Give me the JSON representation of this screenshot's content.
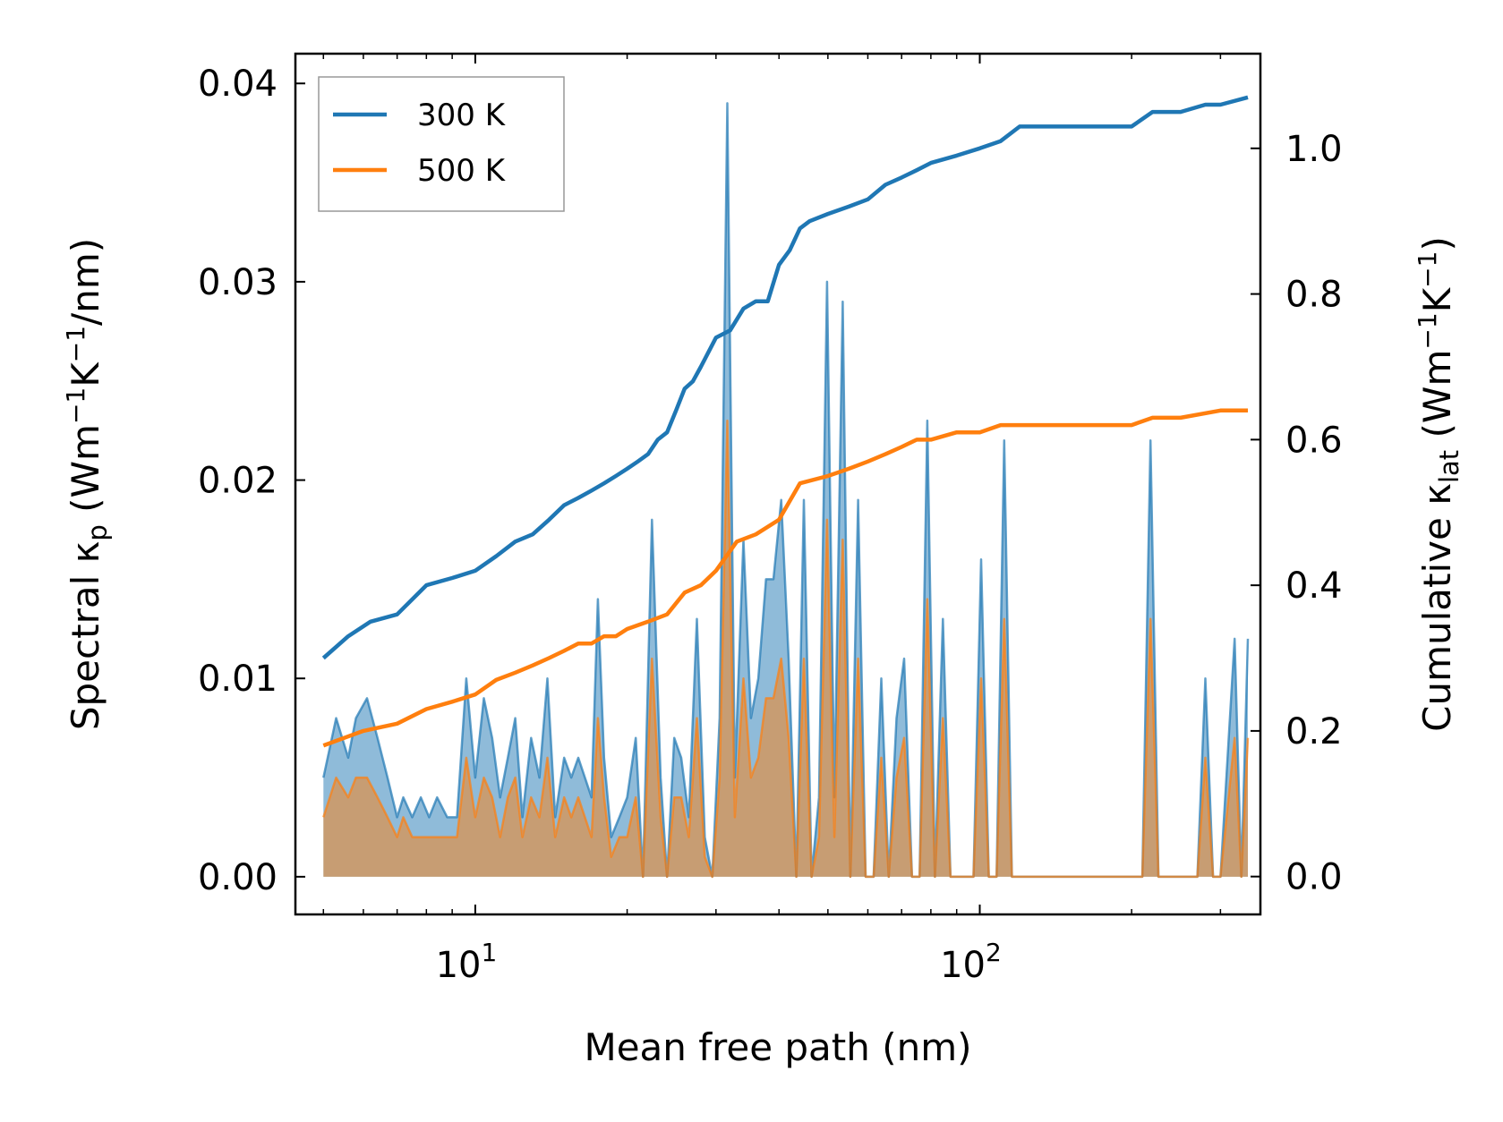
{
  "chart_data": {
    "type": "line",
    "xlabel": "Mean free path (nm)",
    "x_scale": "log",
    "xlim": [
      4.4,
      360
    ],
    "x_major_ticks": [
      {
        "value": 10,
        "base": "10",
        "exp": "1"
      },
      {
        "value": 100,
        "base": "10",
        "exp": "2"
      }
    ],
    "left_axis": {
      "label_main": "Spectral κ",
      "label_sub": "p",
      "label_unit_parts": [
        "(Wm",
        "−1",
        "K",
        "−1",
        "/nm)"
      ],
      "ylim": [
        -0.0019,
        0.0415
      ],
      "ticks": [
        0.0,
        0.01,
        0.02,
        0.03,
        0.04
      ],
      "tick_labels": [
        "0.00",
        "0.01",
        "0.02",
        "0.03",
        "0.04"
      ]
    },
    "right_axis": {
      "label_main": "Cumulative κ",
      "label_sub": "lat",
      "label_unit_parts": [
        "(Wm",
        "−1",
        "K",
        "−1",
        ")"
      ],
      "ylim": [
        -0.052,
        1.13
      ],
      "ticks": [
        0.0,
        0.2,
        0.4,
        0.6,
        0.8,
        1.0
      ],
      "tick_labels": [
        "0.0",
        "0.2",
        "0.4",
        "0.6",
        "0.8",
        "1.0"
      ]
    },
    "legend": {
      "position": "upper-left",
      "entries": [
        "300 K",
        "500 K"
      ]
    },
    "colors": {
      "300 K": "#1f77b4",
      "500 K": "#ff7f0e"
    },
    "series": [
      {
        "name": "300 K",
        "axis": "right",
        "kind": "cumulative",
        "x": [
          5.0,
          5.6,
          6.2,
          7.0,
          8.0,
          9.0,
          10.0,
          11.0,
          12.0,
          13.0,
          14.0,
          15.0,
          16.0,
          17.0,
          18.0,
          19.0,
          20.0,
          21.0,
          22.0,
          23.0,
          24.0,
          25.0,
          26.0,
          27.0,
          28.0,
          30.0,
          32.0,
          34.0,
          36.0,
          38.0,
          40.0,
          42.0,
          44.0,
          46.0,
          50.0,
          55.0,
          60.0,
          65.0,
          70.0,
          75.0,
          80.0,
          90.0,
          100.0,
          110.0,
          120.0,
          150.0,
          200.0,
          220.0,
          250.0,
          280.0,
          300.0,
          340.0
        ],
        "values": [
          0.3,
          0.33,
          0.35,
          0.36,
          0.4,
          0.41,
          0.42,
          0.44,
          0.46,
          0.47,
          0.49,
          0.51,
          0.52,
          0.53,
          0.54,
          0.55,
          0.56,
          0.57,
          0.58,
          0.6,
          0.61,
          0.64,
          0.67,
          0.68,
          0.7,
          0.74,
          0.75,
          0.78,
          0.79,
          0.79,
          0.84,
          0.86,
          0.89,
          0.9,
          0.91,
          0.92,
          0.93,
          0.95,
          0.96,
          0.97,
          0.98,
          0.99,
          1.0,
          1.01,
          1.03,
          1.03,
          1.03,
          1.05,
          1.05,
          1.06,
          1.06,
          1.07
        ]
      },
      {
        "name": "500 K",
        "axis": "right",
        "kind": "cumulative",
        "x": [
          5.0,
          6.0,
          7.0,
          8.0,
          9.0,
          10.0,
          11.0,
          12.0,
          13.0,
          14.0,
          15.0,
          16.0,
          17.0,
          18.0,
          19.0,
          20.0,
          22.0,
          24.0,
          26.0,
          28.0,
          30.0,
          33.0,
          36.0,
          40.0,
          44.0,
          50.0,
          55.0,
          60.0,
          65.0,
          70.0,
          75.0,
          80.0,
          90.0,
          100.0,
          110.0,
          120.0,
          150.0,
          200.0,
          220.0,
          250.0,
          300.0,
          340.0
        ],
        "values": [
          0.18,
          0.2,
          0.21,
          0.23,
          0.24,
          0.25,
          0.27,
          0.28,
          0.29,
          0.3,
          0.31,
          0.32,
          0.32,
          0.33,
          0.33,
          0.34,
          0.35,
          0.36,
          0.39,
          0.4,
          0.42,
          0.46,
          0.47,
          0.49,
          0.54,
          0.55,
          0.56,
          0.57,
          0.58,
          0.59,
          0.6,
          0.6,
          0.61,
          0.61,
          0.62,
          0.62,
          0.62,
          0.62,
          0.63,
          0.63,
          0.64,
          0.64
        ]
      },
      {
        "name": "300 K",
        "axis": "left",
        "kind": "spectral",
        "x": [
          5.0,
          5.3,
          5.6,
          5.8,
          6.1,
          6.4,
          6.7,
          7.0,
          7.2,
          7.5,
          7.8,
          8.1,
          8.4,
          8.8,
          9.2,
          9.6,
          10.0,
          10.4,
          10.8,
          11.2,
          11.6,
          12.0,
          12.4,
          12.9,
          13.4,
          13.9,
          14.4,
          15.0,
          15.5,
          16.0,
          17.0,
          17.5,
          18.0,
          18.6,
          19.3,
          20.0,
          20.8,
          21.5,
          22.4,
          23.3,
          24.0,
          24.8,
          25.6,
          26.5,
          27.5,
          28.5,
          29.5,
          30.5,
          31.6,
          32.7,
          34.0,
          35.2,
          36.4,
          37.7,
          39.0,
          40.4,
          41.8,
          43.3,
          44.8,
          46.4,
          48.0,
          49.8,
          51.5,
          53.5,
          55.4,
          57.4,
          59.4,
          61.6,
          63.8,
          66.0,
          68.4,
          70.8,
          73.4,
          76.0,
          78.7,
          81.5,
          84.5,
          87.5,
          90.6,
          93.8,
          97.2,
          100.6,
          104.2,
          108.0,
          111.8,
          115.8,
          119.9,
          124.2,
          128.6,
          133.2,
          200.0,
          210.0,
          218.0,
          226.0,
          234.0,
          270.0,
          280.0,
          290.0,
          300.0,
          320.0,
          330.0,
          340.0
        ],
        "values": [
          0.005,
          0.008,
          0.006,
          0.008,
          0.009,
          0.007,
          0.005,
          0.003,
          0.004,
          0.003,
          0.004,
          0.003,
          0.004,
          0.003,
          0.003,
          0.01,
          0.005,
          0.009,
          0.007,
          0.004,
          0.006,
          0.008,
          0.003,
          0.007,
          0.005,
          0.01,
          0.003,
          0.006,
          0.005,
          0.006,
          0.004,
          0.014,
          0.006,
          0.002,
          0.003,
          0.004,
          0.007,
          0.0,
          0.018,
          0.005,
          0.0,
          0.007,
          0.006,
          0.003,
          0.013,
          0.002,
          0.0,
          0.008,
          0.039,
          0.005,
          0.017,
          0.008,
          0.01,
          0.015,
          0.015,
          0.019,
          0.011,
          0.0,
          0.019,
          0.0,
          0.004,
          0.03,
          0.004,
          0.029,
          0.0,
          0.019,
          0.0,
          0.0,
          0.01,
          0.0,
          0.008,
          0.011,
          0.0,
          0.0,
          0.023,
          0.0,
          0.013,
          0.0,
          0.0,
          0.0,
          0.0,
          0.016,
          0.0,
          0.0,
          0.022,
          0.0,
          0.0,
          0.0,
          0.0,
          0.0,
          0.0,
          0.0,
          0.022,
          0.0,
          0.0,
          0.0,
          0.01,
          0.0,
          0.0,
          0.012,
          0.0,
          0.012
        ]
      },
      {
        "name": "500 K",
        "axis": "left",
        "kind": "spectral",
        "x": [
          5.0,
          5.3,
          5.6,
          5.8,
          6.1,
          6.4,
          6.7,
          7.0,
          7.2,
          7.5,
          7.8,
          8.1,
          8.4,
          8.8,
          9.2,
          9.6,
          10.0,
          10.4,
          10.8,
          11.2,
          11.6,
          12.0,
          12.4,
          12.9,
          13.4,
          13.9,
          14.4,
          15.0,
          15.5,
          16.0,
          17.0,
          17.5,
          18.0,
          18.6,
          19.3,
          20.0,
          20.8,
          21.5,
          22.4,
          23.3,
          24.0,
          24.8,
          25.6,
          26.5,
          27.5,
          28.5,
          29.5,
          30.5,
          31.6,
          32.7,
          34.0,
          35.2,
          36.4,
          37.7,
          39.0,
          40.4,
          41.8,
          43.3,
          44.8,
          46.4,
          48.0,
          49.8,
          51.5,
          53.5,
          55.4,
          57.4,
          59.4,
          61.6,
          63.8,
          66.0,
          68.4,
          70.8,
          73.4,
          76.0,
          78.7,
          81.5,
          84.5,
          87.5,
          90.6,
          93.8,
          97.2,
          100.6,
          104.2,
          108.0,
          111.8,
          115.8,
          119.9,
          124.2,
          128.6,
          133.2,
          200.0,
          210.0,
          218.0,
          226.0,
          234.0,
          270.0,
          280.0,
          290.0,
          300.0,
          320.0,
          330.0,
          340.0
        ],
        "values": [
          0.003,
          0.005,
          0.004,
          0.005,
          0.005,
          0.004,
          0.003,
          0.002,
          0.003,
          0.002,
          0.002,
          0.002,
          0.002,
          0.002,
          0.002,
          0.006,
          0.003,
          0.005,
          0.004,
          0.002,
          0.004,
          0.005,
          0.002,
          0.004,
          0.003,
          0.006,
          0.002,
          0.004,
          0.003,
          0.004,
          0.002,
          0.008,
          0.004,
          0.001,
          0.002,
          0.002,
          0.004,
          0.0,
          0.011,
          0.003,
          0.0,
          0.004,
          0.004,
          0.002,
          0.008,
          0.001,
          0.0,
          0.005,
          0.023,
          0.003,
          0.01,
          0.005,
          0.006,
          0.009,
          0.009,
          0.011,
          0.007,
          0.0,
          0.011,
          0.0,
          0.002,
          0.018,
          0.002,
          0.017,
          0.0,
          0.011,
          0.0,
          0.0,
          0.006,
          0.0,
          0.005,
          0.007,
          0.0,
          0.0,
          0.014,
          0.0,
          0.008,
          0.0,
          0.0,
          0.0,
          0.0,
          0.01,
          0.0,
          0.0,
          0.013,
          0.0,
          0.0,
          0.0,
          0.0,
          0.0,
          0.0,
          0.0,
          0.013,
          0.0,
          0.0,
          0.0,
          0.006,
          0.0,
          0.0,
          0.007,
          0.0,
          0.007
        ]
      }
    ]
  }
}
